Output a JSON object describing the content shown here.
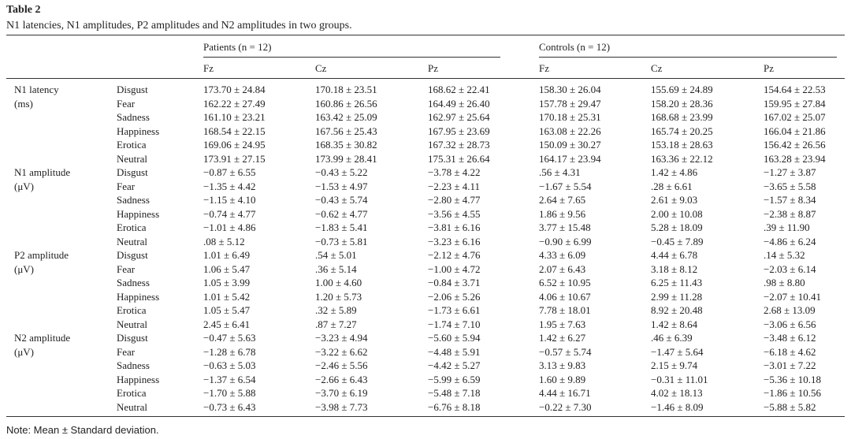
{
  "header": {
    "title": "Table 2",
    "caption": "N1 latencies, N1 amplitudes, P2 amplitudes and N2 amplitudes in two groups."
  },
  "table": {
    "groups": [
      "Patients (n = 12)",
      "Controls (n = 12)"
    ],
    "columns": [
      "Fz",
      "Cz",
      "Pz",
      "Fz",
      "Cz",
      "Pz"
    ],
    "sections": [
      {
        "label": [
          "N1 latency",
          "(ms)"
        ],
        "rows": [
          {
            "emotion": "Disgust",
            "values": [
              "173.70 ± 24.84",
              "170.18 ± 23.51",
              "168.62 ± 22.41",
              "158.30 ± 26.04",
              "155.69 ± 24.89",
              "154.64 ± 22.53"
            ]
          },
          {
            "emotion": "Fear",
            "values": [
              "162.22 ± 27.49",
              "160.86 ± 26.56",
              "164.49 ± 26.40",
              "157.78 ± 29.47",
              "158.20 ± 28.36",
              "159.95 ± 27.84"
            ]
          },
          {
            "emotion": "Sadness",
            "values": [
              "161.10 ± 23.21",
              "163.42 ± 25.09",
              "162.97 ± 25.64",
              "170.18 ± 25.31",
              "168.68 ± 23.99",
              "167.02 ± 25.07"
            ]
          },
          {
            "emotion": "Happiness",
            "values": [
              "168.54 ± 22.15",
              "167.56 ± 25.43",
              "167.95 ± 23.69",
              "163.08 ± 22.26",
              "165.74 ± 20.25",
              "166.04 ± 21.86"
            ]
          },
          {
            "emotion": "Erotica",
            "values": [
              "169.06 ± 24.95",
              "168.35 ± 30.82",
              "167.32 ± 28.73",
              "150.09 ± 30.27",
              "153.18 ± 28.63",
              "156.42 ± 26.56"
            ]
          },
          {
            "emotion": "Neutral",
            "values": [
              "173.91 ± 27.15",
              "173.99 ± 28.41",
              "175.31 ± 26.64",
              "164.17 ± 23.94",
              "163.36 ± 22.12",
              "163.28 ± 23.94"
            ]
          }
        ]
      },
      {
        "label": [
          "N1 amplitude",
          "(μV)"
        ],
        "rows": [
          {
            "emotion": "Disgust",
            "values": [
              "−0.87 ± 6.55",
              "−0.43 ± 5.22",
              "−3.78 ± 4.22",
              ".56 ± 4.31",
              "1.42 ± 4.86",
              "−1.27 ± 3.87"
            ]
          },
          {
            "emotion": "Fear",
            "values": [
              "−1.35 ± 4.42",
              "−1.53 ± 4.97",
              "−2.23 ± 4.11",
              "−1.67 ± 5.54",
              ".28 ± 6.61",
              "−3.65 ± 5.58"
            ]
          },
          {
            "emotion": "Sadness",
            "values": [
              "−1.15 ± 4.10",
              "−0.43 ± 5.74",
              "−2.80 ± 4.77",
              "2.64 ± 7.65",
              "2.61 ± 9.03",
              "−1.57 ± 8.34"
            ]
          },
          {
            "emotion": "Happiness",
            "values": [
              "−0.74 ± 4.77",
              "−0.62 ± 4.77",
              "−3.56 ± 4.55",
              "1.86 ± 9.56",
              "2.00 ± 10.08",
              "−2.38 ± 8.87"
            ]
          },
          {
            "emotion": "Erotica",
            "values": [
              "−1.01 ± 4.86",
              "−1.83 ± 5.41",
              "−3.81 ± 6.16",
              "3.77 ± 15.48",
              "5.28 ± 18.09",
              ".39 ± 11.90"
            ]
          },
          {
            "emotion": "Neutral",
            "values": [
              ".08 ± 5.12",
              "−0.73 ± 5.81",
              "−3.23 ± 6.16",
              "−0.90 ± 6.99",
              "−0.45 ± 7.89",
              "−4.86 ± 6.24"
            ]
          }
        ]
      },
      {
        "label": [
          "P2 amplitude",
          "(μV)"
        ],
        "rows": [
          {
            "emotion": "Disgust",
            "values": [
              "1.01 ± 6.49",
              ".54 ± 5.01",
              "−2.12 ± 4.76",
              "4.33 ± 6.09",
              "4.44 ± 6.78",
              ".14 ± 5.32"
            ]
          },
          {
            "emotion": "Fear",
            "values": [
              "1.06 ± 5.47",
              ".36 ± 5.14",
              "−1.00 ± 4.72",
              "2.07 ± 6.43",
              "3.18 ± 8.12",
              "−2.03 ± 6.14"
            ]
          },
          {
            "emotion": "Sadness",
            "values": [
              "1.05 ± 3.99",
              "1.00 ± 4.60",
              "−0.84 ± 3.71",
              "6.52 ± 10.95",
              "6.25 ± 11.43",
              ".98 ± 8.80"
            ]
          },
          {
            "emotion": "Happiness",
            "values": [
              "1.01 ± 5.42",
              "1.20 ± 5.73",
              "−2.06 ± 5.26",
              "4.06 ± 10.67",
              "2.99 ± 11.28",
              "−2.07 ± 10.41"
            ]
          },
          {
            "emotion": "Erotica",
            "values": [
              "1.05 ± 5.47",
              ".32 ± 5.89",
              "−1.73 ± 6.61",
              "7.78 ± 18.01",
              "8.92 ± 20.48",
              "2.68 ± 13.09"
            ]
          },
          {
            "emotion": "Neutral",
            "values": [
              "2.45 ± 6.41",
              ".87 ± 7.27",
              "−1.74 ± 7.10",
              "1.95 ± 7.63",
              "1.42 ± 8.64",
              "−3.06 ± 6.56"
            ]
          }
        ]
      },
      {
        "label": [
          "N2 amplitude",
          "(μV)"
        ],
        "rows": [
          {
            "emotion": "Disgust",
            "values": [
              "−0.47 ± 5.63",
              "−3.23 ± 4.94",
              "−5.60 ± 5.94",
              "1.42 ± 6.27",
              ".46 ± 6.39",
              "−3.48 ± 6.12"
            ]
          },
          {
            "emotion": "Fear",
            "values": [
              "−1.28 ± 6.78",
              "−3.22 ± 6.62",
              "−4.48 ± 5.91",
              "−0.57 ± 5.74",
              "−1.47 ± 5.64",
              "−6.18 ± 4.62"
            ]
          },
          {
            "emotion": "Sadness",
            "values": [
              "−0.63 ± 5.03",
              "−2.46 ± 5.56",
              "−4.42 ± 5.27",
              "3.13 ± 9.83",
              "2.15 ± 9.74",
              "−3.01 ± 7.22"
            ]
          },
          {
            "emotion": "Happiness",
            "values": [
              "−1.37 ± 6.54",
              "−2.66 ± 6.43",
              "−5.99 ± 6.59",
              "1.60 ± 9.89",
              "−0.31 ± 11.01",
              "−5.36 ± 10.18"
            ]
          },
          {
            "emotion": "Erotica",
            "values": [
              "−1.70 ± 5.88",
              "−3.70 ± 6.19",
              "−5.48 ± 7.18",
              "4.44 ± 16.71",
              "4.02 ± 18.13",
              "−1.86 ± 10.56"
            ]
          },
          {
            "emotion": "Neutral",
            "values": [
              "−0.73 ± 6.43",
              "−3.98 ± 7.73",
              "−6.76 ± 8.18",
              "−0.22 ± 7.30",
              "−1.46 ± 8.09",
              "−5.88 ± 5.82"
            ]
          }
        ]
      }
    ]
  },
  "footer": {
    "note": "Note: Mean ± Standard deviation."
  }
}
